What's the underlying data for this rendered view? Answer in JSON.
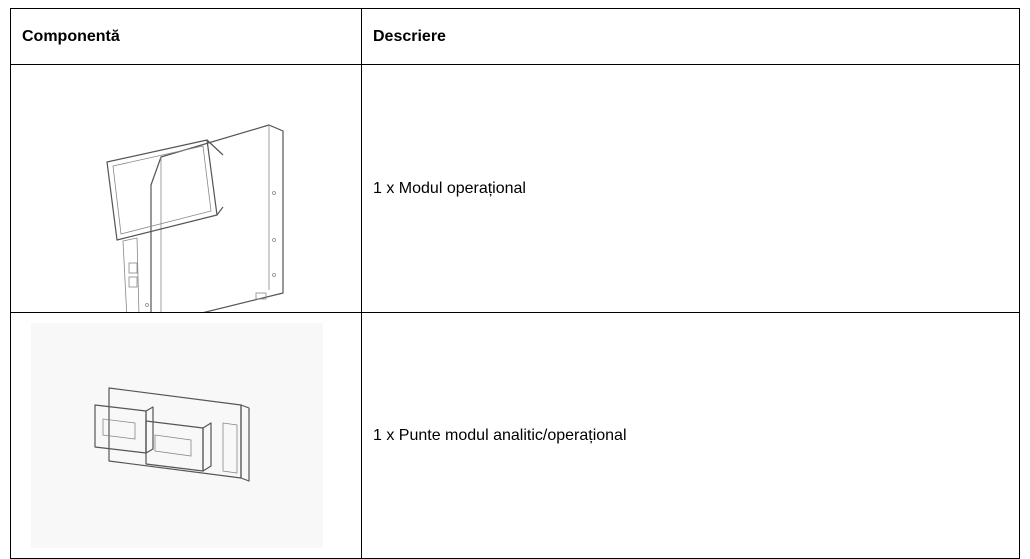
{
  "table": {
    "header": [
      "Componentă",
      "Descriere"
    ],
    "rows": [
      {
        "description": "1 x Modul operațional"
      },
      {
        "description": "1 x Punte modul analitic/operațional"
      }
    ]
  }
}
